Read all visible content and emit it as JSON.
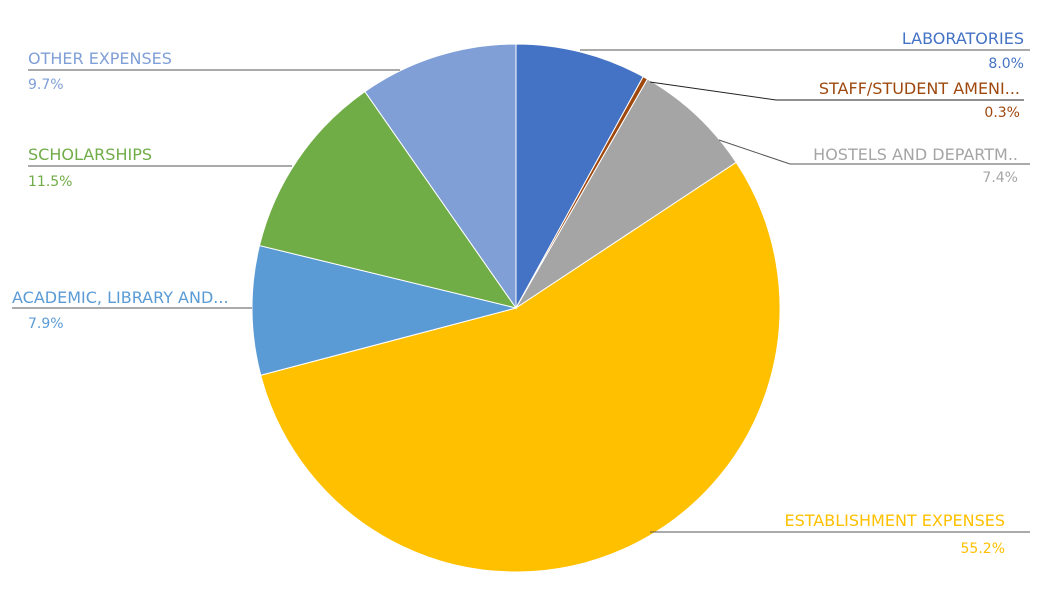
{
  "chart_data": {
    "type": "pie",
    "start": "top",
    "direction": "clockwise",
    "slices": [
      {
        "label": "LABORATORIES",
        "value": 8.0,
        "display": "8.0%",
        "color": "#4472C4"
      },
      {
        "label": "STAFF/STUDENT AMENI...",
        "value": 0.3,
        "display": "0.3%",
        "color": "#9E480E"
      },
      {
        "label": "HOSTELS AND DEPARTM..",
        "value": 7.4,
        "display": "7.4%",
        "color": "#A5A5A5"
      },
      {
        "label": "ESTABLISHMENT EXPENSES",
        "value": 55.2,
        "display": "55.2%",
        "color": "#FFC000"
      },
      {
        "label": "ACADEMIC, LIBRARY AND...",
        "value": 7.9,
        "display": "7.9%",
        "color": "#5B9BD5"
      },
      {
        "label": "SCHOLARSHIPS",
        "value": 11.5,
        "display": "11.5%",
        "color": "#70AD47"
      },
      {
        "label": "OTHER EXPENSES",
        "value": 9.7,
        "display": "9.7%",
        "color": "#7F9FD6"
      }
    ],
    "legend": "none",
    "data_labels": "outside with leader lines"
  }
}
